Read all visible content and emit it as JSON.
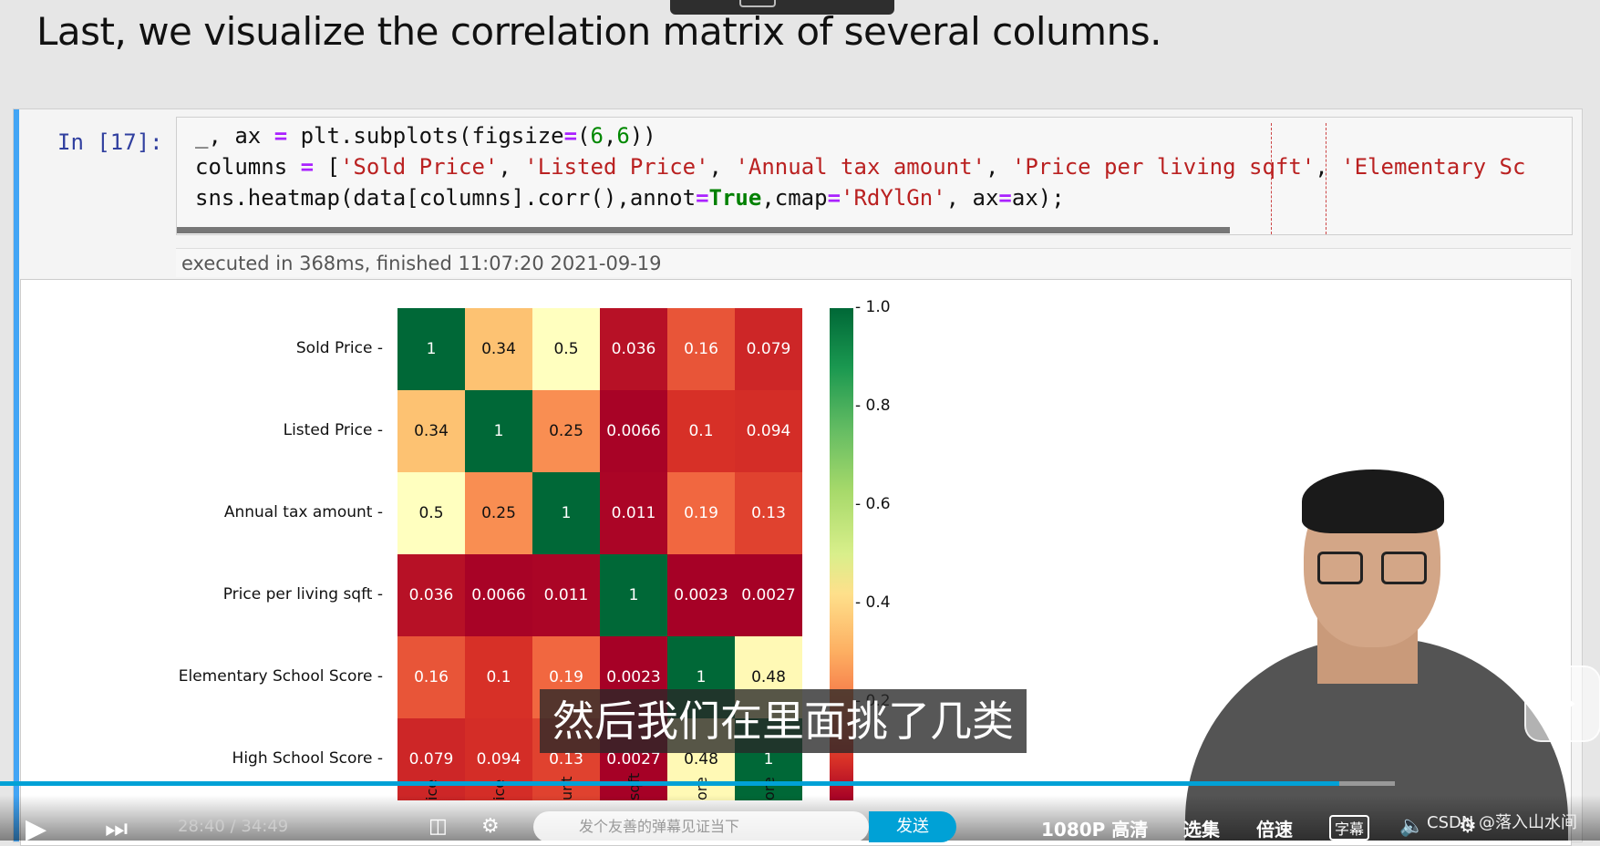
{
  "page": {
    "heading": "Last, we visualize the correlation matrix of several columns."
  },
  "cell": {
    "prompt": "In [17]:",
    "code": {
      "l1_a": "_, ax ",
      "l1_op": "=",
      "l1_b": " plt.subplots(figsize",
      "l1_op2": "=",
      "l1_c": "(",
      "l1_n1": "6",
      "l1_d": ",",
      "l1_n2": "6",
      "l1_e": "))",
      "l2_a": "columns ",
      "l2_op": "=",
      "l2_b": " [",
      "l2_s1": "'Sold Price'",
      "l2_c1": ", ",
      "l2_s2": "'Listed Price'",
      "l2_c2": ", ",
      "l2_s3": "'Annual tax amount'",
      "l2_c3": ", ",
      "l2_s4": "'Price per living sqft'",
      "l2_c4": ", ",
      "l2_s5": "'Elementary Sc",
      "l3_a": "sns.heatmap(data[columns].corr(),annot",
      "l3_op": "=",
      "l3_kw": "True",
      "l3_b": ",cmap",
      "l3_op2": "=",
      "l3_s": "'RdYlGn'",
      "l3_c": ", ax",
      "l3_op3": "=",
      "l3_d": "ax);"
    },
    "executed": "executed in 368ms, finished 11:07:20 2021-09-19"
  },
  "chart_data": {
    "type": "heatmap",
    "row_labels": [
      "Sold Price",
      "Listed Price",
      "Annual tax amount",
      "Price per living sqft",
      "Elementary School Score",
      "High School Score"
    ],
    "col_tick_labels": [
      "ice",
      "ice",
      "unt",
      "sqft",
      "ore",
      "ore"
    ],
    "values": [
      [
        "1",
        "0.34",
        "0.5",
        "0.036",
        "0.16",
        "0.079"
      ],
      [
        "0.34",
        "1",
        "0.25",
        "0.0066",
        "0.1",
        "0.094"
      ],
      [
        "0.5",
        "0.25",
        "1",
        "0.011",
        "0.19",
        "0.13"
      ],
      [
        "0.036",
        "0.0066",
        "0.011",
        "1",
        "0.0023",
        "0.0027"
      ],
      [
        "0.16",
        "0.1",
        "0.19",
        "0.0023",
        "1",
        "0.48"
      ],
      [
        "0.079",
        "0.094",
        "0.13",
        "0.0027",
        "0.48",
        "1"
      ]
    ],
    "colormap": "RdYlGn",
    "colorbar_ticks": [
      "1.0",
      "0.8",
      "0.6",
      "0.4",
      "0.2"
    ],
    "vmin": 0,
    "vmax": 1
  },
  "video": {
    "subtitle": "然后我们在里面挑了几类",
    "time": "28:40 / 34:49",
    "danmaku_placeholder": "发个友善的弹幕见证当下",
    "send": "发送",
    "quality": "1080P 高清",
    "select": "选集",
    "speed": "倍速",
    "caption": "字幕",
    "watermark": "CSDN @落入山水间",
    "progress": 0.96
  }
}
